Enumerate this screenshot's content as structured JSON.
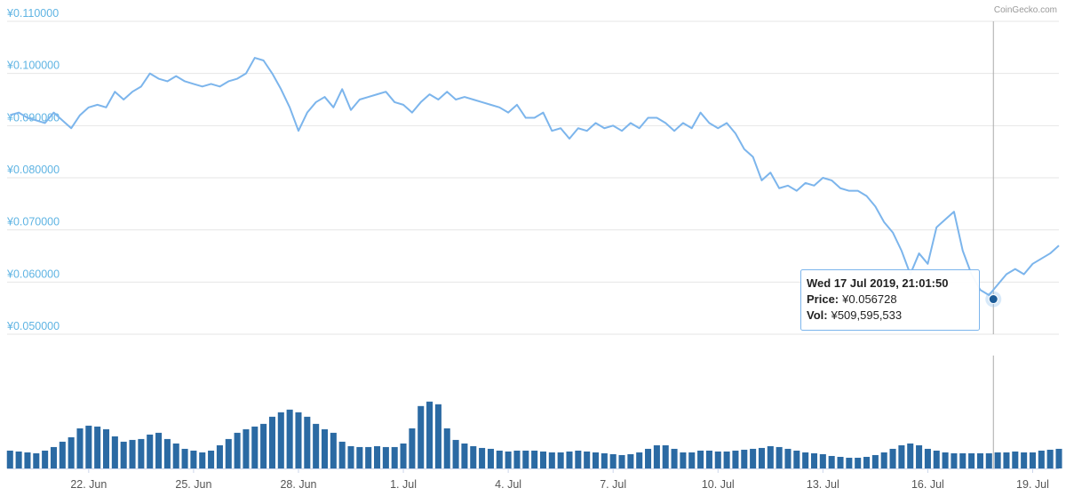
{
  "chart_data": {
    "type": "line",
    "credit": "CoinGecko.com",
    "x": [
      "2019-06-19T18:00",
      "2019-06-20T00:00",
      "2019-06-20T06:00",
      "2019-06-20T12:00",
      "2019-06-20T18:00",
      "2019-06-21T00:00",
      "2019-06-21T06:00",
      "2019-06-21T12:00",
      "2019-06-21T18:00",
      "2019-06-22T00:00",
      "2019-06-22T06:00",
      "2019-06-22T12:00",
      "2019-06-22T18:00",
      "2019-06-23T00:00",
      "2019-06-23T06:00",
      "2019-06-23T12:00",
      "2019-06-23T18:00",
      "2019-06-24T00:00",
      "2019-06-24T06:00",
      "2019-06-24T12:00",
      "2019-06-24T18:00",
      "2019-06-25T00:00",
      "2019-06-25T06:00",
      "2019-06-25T12:00",
      "2019-06-25T18:00",
      "2019-06-26T00:00",
      "2019-06-26T06:00",
      "2019-06-26T12:00",
      "2019-06-26T18:00",
      "2019-06-27T00:00",
      "2019-06-27T06:00",
      "2019-06-27T12:00",
      "2019-06-27T18:00",
      "2019-06-28T00:00",
      "2019-06-28T06:00",
      "2019-06-28T12:00",
      "2019-06-28T18:00",
      "2019-06-29T00:00",
      "2019-06-29T06:00",
      "2019-06-29T12:00",
      "2019-06-29T18:00",
      "2019-06-30T00:00",
      "2019-06-30T06:00",
      "2019-06-30T12:00",
      "2019-06-30T18:00",
      "2019-07-01T00:00",
      "2019-07-01T06:00",
      "2019-07-01T12:00",
      "2019-07-01T18:00",
      "2019-07-02T00:00",
      "2019-07-02T06:00",
      "2019-07-02T12:00",
      "2019-07-02T18:00",
      "2019-07-03T00:00",
      "2019-07-03T06:00",
      "2019-07-03T12:00",
      "2019-07-03T18:00",
      "2019-07-04T00:00",
      "2019-07-04T06:00",
      "2019-07-04T12:00",
      "2019-07-04T18:00",
      "2019-07-05T00:00",
      "2019-07-05T06:00",
      "2019-07-05T12:00",
      "2019-07-05T18:00",
      "2019-07-06T00:00",
      "2019-07-06T06:00",
      "2019-07-06T12:00",
      "2019-07-06T18:00",
      "2019-07-07T00:00",
      "2019-07-07T06:00",
      "2019-07-07T12:00",
      "2019-07-07T18:00",
      "2019-07-08T00:00",
      "2019-07-08T06:00",
      "2019-07-08T12:00",
      "2019-07-08T18:00",
      "2019-07-09T00:00",
      "2019-07-09T06:00",
      "2019-07-09T12:00",
      "2019-07-09T18:00",
      "2019-07-10T00:00",
      "2019-07-10T06:00",
      "2019-07-10T12:00",
      "2019-07-10T18:00",
      "2019-07-11T00:00",
      "2019-07-11T06:00",
      "2019-07-11T12:00",
      "2019-07-11T18:00",
      "2019-07-12T00:00",
      "2019-07-12T06:00",
      "2019-07-12T12:00",
      "2019-07-12T18:00",
      "2019-07-13T00:00",
      "2019-07-13T06:00",
      "2019-07-13T12:00",
      "2019-07-13T18:00",
      "2019-07-14T00:00",
      "2019-07-14T06:00",
      "2019-07-14T12:00",
      "2019-07-14T18:00",
      "2019-07-15T00:00",
      "2019-07-15T06:00",
      "2019-07-15T12:00",
      "2019-07-15T18:00",
      "2019-07-16T00:00",
      "2019-07-16T06:00",
      "2019-07-16T12:00",
      "2019-07-16T18:00",
      "2019-07-17T00:00",
      "2019-07-17T06:00",
      "2019-07-17T12:00",
      "2019-07-17T18:00",
      "2019-07-18T00:00",
      "2019-07-18T06:00",
      "2019-07-18T12:00",
      "2019-07-18T18:00",
      "2019-07-19T00:00",
      "2019-07-19T06:00",
      "2019-07-19T12:00",
      "2019-07-19T18:00"
    ],
    "series": [
      {
        "color": "#7cb5ec",
        "values": [
          0.092,
          0.0925,
          0.0915,
          0.091,
          0.0905,
          0.0925,
          0.091,
          0.0895,
          0.092,
          0.0935,
          0.094,
          0.0935,
          0.0965,
          0.095,
          0.0965,
          0.0975,
          0.1,
          0.099,
          0.0985,
          0.0995,
          0.0985,
          0.098,
          0.0975,
          0.098,
          0.0975,
          0.0985,
          0.099,
          0.1,
          0.103,
          0.1025,
          0.1,
          0.097,
          0.0935,
          0.089,
          0.0925,
          0.0945,
          0.0955,
          0.0935,
          0.097,
          0.093,
          0.095,
          0.0955,
          0.096,
          0.0965,
          0.0945,
          0.094,
          0.0925,
          0.0945,
          0.096,
          0.095,
          0.0965,
          0.095,
          0.0955,
          0.095,
          0.0945,
          0.094,
          0.0935,
          0.0925,
          0.094,
          0.0915,
          0.0915,
          0.0925,
          0.089,
          0.0895,
          0.0875,
          0.0895,
          0.089,
          0.0905,
          0.0895,
          0.09,
          0.089,
          0.0905,
          0.0895,
          0.0915,
          0.0915,
          0.0905,
          0.089,
          0.0905,
          0.0895,
          0.0925,
          0.0905,
          0.0895,
          0.0905,
          0.0885,
          0.0855,
          0.084,
          0.0795,
          0.081,
          0.078,
          0.0785,
          0.0775,
          0.079,
          0.0785,
          0.08,
          0.0795,
          0.078,
          0.0775,
          0.0775,
          0.0765,
          0.0745,
          0.0715,
          0.0695,
          0.066,
          0.0615,
          0.0655,
          0.0635,
          0.0705,
          0.072,
          0.0735,
          0.066,
          0.0615,
          0.0585,
          0.0575,
          0.0595,
          0.0615,
          0.0625,
          0.0615,
          0.0635,
          0.0645,
          0.0655,
          0.067
        ]
      },
      {
        "type": "bar",
        "axis": "y2",
        "color": "#2b6aa3",
        "values": [
          600000000,
          570000000,
          540000000,
          510000000,
          600000000,
          720000000,
          900000000,
          1050000000,
          1350000000,
          1440000000,
          1410000000,
          1320000000,
          1080000000,
          900000000,
          960000000,
          990000000,
          1140000000,
          1200000000,
          990000000,
          840000000,
          660000000,
          600000000,
          540000000,
          600000000,
          780000000,
          990000000,
          1200000000,
          1320000000,
          1410000000,
          1500000000,
          1740000000,
          1890000000,
          1980000000,
          1890000000,
          1740000000,
          1500000000,
          1320000000,
          1200000000,
          900000000,
          750000000,
          720000000,
          720000000,
          750000000,
          720000000,
          720000000,
          840000000,
          1350000000,
          2100000000,
          2250000000,
          2160000000,
          1350000000,
          960000000,
          840000000,
          750000000,
          690000000,
          660000000,
          600000000,
          570000000,
          600000000,
          600000000,
          600000000,
          570000000,
          540000000,
          540000000,
          570000000,
          600000000,
          570000000,
          540000000,
          510000000,
          480000000,
          450000000,
          480000000,
          540000000,
          660000000,
          780000000,
          780000000,
          660000000,
          540000000,
          540000000,
          600000000,
          600000000,
          570000000,
          570000000,
          600000000,
          630000000,
          660000000,
          690000000,
          750000000,
          720000000,
          660000000,
          600000000,
          540000000,
          510000000,
          480000000,
          420000000,
          390000000,
          360000000,
          360000000,
          390000000,
          450000000,
          540000000,
          660000000,
          780000000,
          840000000,
          780000000,
          660000000,
          600000000,
          540000000,
          510000000,
          510000000,
          510000000,
          510000000,
          510000000,
          540000000,
          540000000,
          570000000,
          540000000,
          540000000,
          600000000,
          630000000,
          660000000
        ]
      }
    ],
    "xlim": [
      "2019-06-19T16:00",
      "2019-07-19T18:00"
    ],
    "xticks": [
      {
        "value": "2019-06-22T00:00",
        "label": "22. Jun"
      },
      {
        "value": "2019-06-25T00:00",
        "label": "25. Jun"
      },
      {
        "value": "2019-06-28T00:00",
        "label": "28. Jun"
      },
      {
        "value": "2019-07-01T00:00",
        "label": "1. Jul"
      },
      {
        "value": "2019-07-04T00:00",
        "label": "4. Jul"
      },
      {
        "value": "2019-07-07T00:00",
        "label": "7. Jul"
      },
      {
        "value": "2019-07-10T00:00",
        "label": "10. Jul"
      },
      {
        "value": "2019-07-13T00:00",
        "label": "13. Jul"
      },
      {
        "value": "2019-07-16T00:00",
        "label": "16. Jul"
      },
      {
        "value": "2019-07-19T00:00",
        "label": "19. Jul"
      }
    ],
    "ylim": [
      0.05,
      0.11
    ],
    "yticks": [
      {
        "value": 0.05,
        "label": "¥0.050000"
      },
      {
        "value": 0.06,
        "label": "¥0.060000"
      },
      {
        "value": 0.07,
        "label": "¥0.070000"
      },
      {
        "value": 0.08,
        "label": "¥0.080000"
      },
      {
        "value": 0.09,
        "label": "¥0.090000"
      },
      {
        "value": 0.1,
        "label": "¥0.100000"
      },
      {
        "value": 0.11,
        "label": "¥0.110000"
      }
    ],
    "y2lim": [
      0,
      3800000000
    ],
    "grid": true,
    "tooltip": {
      "x": "2019-07-17T21:01:50",
      "date_label": "Wed 17 Jul 2019, 21:01:50",
      "price_name": "Price:",
      "price": 0.056728,
      "price_label": "¥0.056728",
      "volume_name": "Vol:",
      "volume": 509595533,
      "volume_label": "¥509,595,533"
    }
  }
}
